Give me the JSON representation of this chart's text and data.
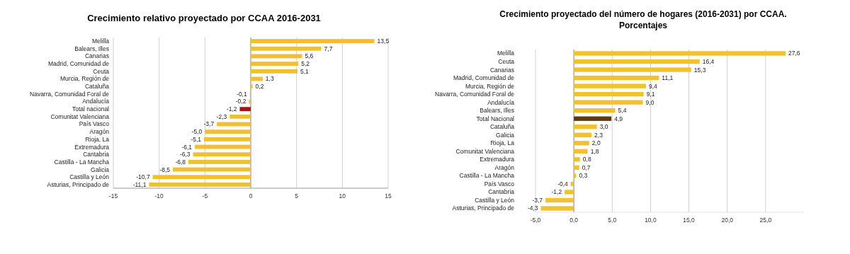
{
  "chart_data": [
    {
      "type": "bar",
      "orientation": "horizontal",
      "title": "Crecimiento relativo proyectado por CCAA 2016-2031",
      "categories": [
        "Melilla",
        "Balears, Illes",
        "Canarias",
        "Madrid, Comunidad de",
        "Ceuta",
        "Murcia, Región de",
        "Cataluña",
        "Navarra, Comunidad Foral de",
        "Andalucía",
        "Total nacional",
        "Comunitat Valenciana",
        "País Vasco",
        "Aragón",
        "Rioja, La",
        "Extremadura",
        "Cantabria",
        "Castilla - La Mancha",
        "Galicia",
        "Castilla y León",
        "Asturias, Principado de"
      ],
      "values": [
        13.5,
        7.7,
        5.6,
        5.2,
        5.1,
        1.3,
        0.2,
        -0.1,
        -0.2,
        -1.2,
        -2.3,
        -3.7,
        -5.0,
        -5.1,
        -6.1,
        -6.3,
        -6.8,
        -8.5,
        -10.7,
        -11.1
      ],
      "value_labels": [
        "13,5",
        "7,7",
        "5,6",
        "5,2",
        "5,1",
        "1,3",
        "0,2",
        "-0,1",
        "-0,2",
        "-1,2",
        "-2,3",
        "-3,7",
        "-5,0",
        "-5,1",
        "-6,1",
        "-6,3",
        "-6,8",
        "-8,5",
        "-10,7",
        "-11,1"
      ],
      "colors": [
        "#f0c030",
        "#f0c030",
        "#f0c030",
        "#f0c030",
        "#f0c030",
        "#f0c030",
        "#f0c030",
        "#f0c030",
        "#f0c030",
        "#a51515",
        "#f0c030",
        "#f0c030",
        "#f0c030",
        "#f0c030",
        "#f0c030",
        "#f0c030",
        "#f0c030",
        "#f0c030",
        "#f0c030",
        "#f0c030"
      ],
      "xlim": [
        -15,
        15
      ],
      "xticks": [
        -15,
        -10,
        -5,
        0,
        5,
        10,
        15
      ],
      "grid": "x"
    },
    {
      "type": "bar",
      "orientation": "horizontal",
      "title": "Crecimiento proyectado del número de hogares (2016-2031) por CCAA.",
      "subtitle": "Porcentajes",
      "categories": [
        "Melilla",
        "Ceuta",
        "Canarias",
        "Madrid, Comunidad de",
        "Murcia, Región de",
        "Navarra, Comunidad Foral de",
        "Andalucía",
        "Balears, Illes",
        "Total Nacional",
        "Cataluña",
        "Galicia",
        "Rioja, La",
        "Comunitat Valenciana",
        "Extremadura",
        "Aragón",
        "Castilla - La Mancha",
        "País Vasco",
        "Cantabria",
        "Castilla y León",
        "Asturias, Principado de"
      ],
      "values": [
        27.6,
        16.4,
        15.3,
        11.1,
        9.4,
        9.1,
        9.0,
        5.4,
        4.9,
        3.0,
        2.3,
        2.0,
        1.8,
        0.8,
        0.7,
        0.3,
        -0.4,
        -1.2,
        -3.7,
        -4.3
      ],
      "value_labels": [
        "27,6",
        "16,4",
        "15,3",
        "11,1",
        "9,4",
        "9,1",
        "9,0",
        "5,4",
        "4,9",
        "3,0",
        "2,3",
        "2,0",
        "1,8",
        "0,8",
        "0,7",
        "0,3",
        "-0,4",
        "-1,2",
        "-3,7",
        "-4,3"
      ],
      "colors": [
        "#f2c12e",
        "#f2c12e",
        "#f2c12e",
        "#f2c12e",
        "#f2c12e",
        "#f2c12e",
        "#f2c12e",
        "#f2c12e",
        "#5c3a12",
        "#f2c12e",
        "#f2c12e",
        "#f2c12e",
        "#f2c12e",
        "#f2c12e",
        "#f2c12e",
        "#f2c12e",
        "#f2c12e",
        "#f2c12e",
        "#f2c12e",
        "#f2c12e"
      ],
      "xlim": [
        -5,
        30
      ],
      "xticks": [
        {
          "value": -5,
          "label": "-5,0"
        },
        {
          "value": 0,
          "label": "0,0"
        },
        {
          "value": 5,
          "label": "5,0"
        },
        {
          "value": 10,
          "label": "10,0"
        },
        {
          "value": 15,
          "label": "15,0"
        },
        {
          "value": 20,
          "label": "20,0"
        },
        {
          "value": 25,
          "label": "25,0"
        }
      ],
      "grid": "x"
    }
  ]
}
